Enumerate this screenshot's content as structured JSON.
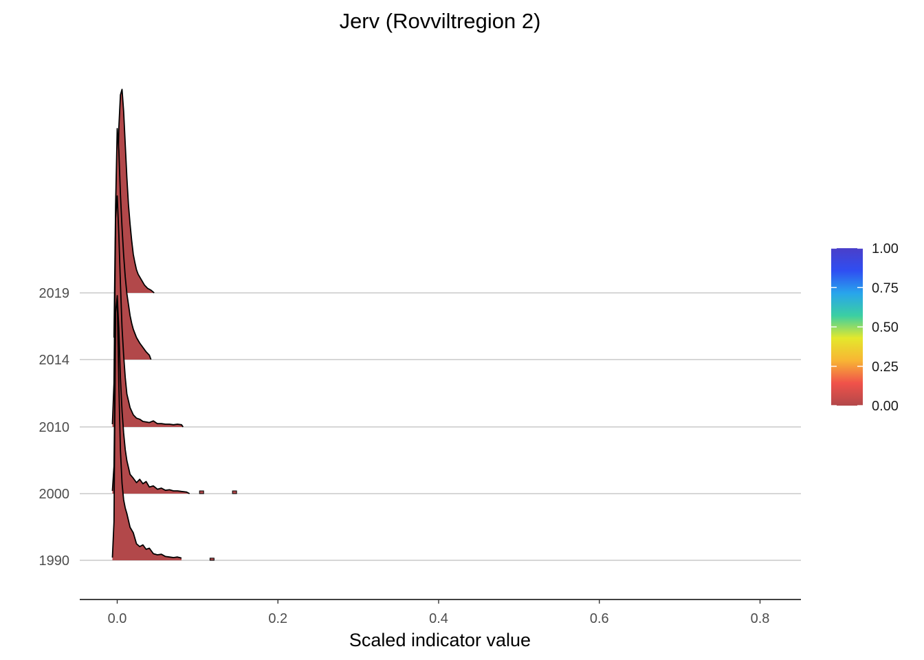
{
  "chart_data": {
    "type": "ridgeline",
    "title": "Jerv (Rovviltregion 2)",
    "xlabel": "Scaled indicator value",
    "ylabel": "",
    "xlim": [
      -0.045,
      0.85
    ],
    "x_ticks": [
      0.0,
      0.2,
      0.4,
      0.6,
      0.8
    ],
    "x_tick_labels": [
      "0.0",
      "0.2",
      "0.4",
      "0.6",
      "0.8"
    ],
    "categories": [
      "1990",
      "2000",
      "2010",
      "2014",
      "2019"
    ],
    "grid": "horizontal",
    "fill_scale": {
      "colors": [
        "#b2484a",
        "#f0524a",
        "#f8b534",
        "#e4e82c",
        "#3bcfa2",
        "#28a5ec",
        "#2f4ef2",
        "#4a3fc9"
      ],
      "min": 0.0,
      "max": 1.0,
      "ticks": [
        0.0,
        0.25,
        0.5,
        0.75,
        1.0
      ],
      "tick_labels": [
        "0.00",
        "0.25",
        "0.50",
        "0.75",
        "1.00"
      ]
    },
    "series": [
      {
        "name": "1990",
        "x": [
          -0.006,
          -0.004,
          -0.002,
          0.0,
          0.002,
          0.004,
          0.006,
          0.008,
          0.01,
          0.012,
          0.016,
          0.02,
          0.024,
          0.028,
          0.032,
          0.036,
          0.04,
          0.045,
          0.05,
          0.055,
          0.06,
          0.065,
          0.07,
          0.075,
          0.08
        ],
        "density": [
          0.05,
          0.7,
          4.5,
          4.8,
          3.2,
          2.0,
          1.4,
          1.1,
          0.95,
          0.85,
          0.6,
          0.5,
          0.3,
          0.25,
          0.28,
          0.2,
          0.22,
          0.12,
          0.1,
          0.11,
          0.07,
          0.06,
          0.05,
          0.06,
          0.04
        ],
        "outliers": [
          {
            "x": 0.118,
            "density": 0.04
          }
        ]
      },
      {
        "name": "2000",
        "x": [
          -0.006,
          -0.004,
          -0.002,
          0.0,
          0.002,
          0.004,
          0.006,
          0.008,
          0.01,
          0.012,
          0.016,
          0.02,
          0.024,
          0.028,
          0.032,
          0.036,
          0.04,
          0.045,
          0.05,
          0.055,
          0.06,
          0.065,
          0.07,
          0.075,
          0.08,
          0.086,
          0.09
        ],
        "density": [
          0.05,
          0.5,
          3.0,
          3.6,
          3.0,
          2.1,
          1.5,
          1.1,
          0.8,
          0.6,
          0.35,
          0.28,
          0.2,
          0.26,
          0.18,
          0.22,
          0.12,
          0.14,
          0.08,
          0.1,
          0.06,
          0.07,
          0.05,
          0.05,
          0.04,
          0.03,
          0.0
        ],
        "outliers": [
          {
            "x": 0.105,
            "density": 0.05
          },
          {
            "x": 0.146,
            "density": 0.05
          }
        ]
      },
      {
        "name": "2010",
        "x": [
          -0.006,
          -0.004,
          -0.002,
          0.0,
          0.002,
          0.004,
          0.006,
          0.008,
          0.01,
          0.012,
          0.016,
          0.02,
          0.024,
          0.028,
          0.032,
          0.036,
          0.04,
          0.045,
          0.05,
          0.055,
          0.06,
          0.065,
          0.07,
          0.075,
          0.08,
          0.082
        ],
        "density": [
          0.05,
          0.8,
          3.8,
          4.2,
          3.5,
          2.6,
          1.8,
          1.3,
          0.9,
          0.6,
          0.35,
          0.22,
          0.16,
          0.14,
          0.1,
          0.09,
          0.08,
          0.11,
          0.06,
          0.06,
          0.05,
          0.05,
          0.04,
          0.05,
          0.04,
          0.0
        ]
      },
      {
        "name": "2014",
        "x": [
          -0.004,
          -0.002,
          0.0,
          0.002,
          0.004,
          0.006,
          0.008,
          0.01,
          0.012,
          0.014,
          0.016,
          0.018,
          0.02,
          0.024,
          0.028,
          0.032,
          0.036,
          0.04,
          0.042
        ],
        "density": [
          0.4,
          2.8,
          4.2,
          3.8,
          3.0,
          2.4,
          1.9,
          1.5,
          1.2,
          1.0,
          0.8,
          0.66,
          0.55,
          0.4,
          0.3,
          0.22,
          0.14,
          0.08,
          0.0
        ]
      },
      {
        "name": "2019",
        "x": [
          -0.002,
          0.0,
          0.002,
          0.004,
          0.006,
          0.008,
          0.01,
          0.012,
          0.014,
          0.016,
          0.018,
          0.02,
          0.022,
          0.024,
          0.026,
          0.03,
          0.034,
          0.038,
          0.042,
          0.046
        ],
        "density": [
          0.5,
          1.5,
          3.0,
          3.6,
          3.7,
          3.3,
          2.7,
          2.1,
          1.6,
          1.25,
          0.95,
          0.7,
          0.55,
          0.42,
          0.34,
          0.24,
          0.14,
          0.08,
          0.05,
          0.0
        ]
      }
    ]
  }
}
